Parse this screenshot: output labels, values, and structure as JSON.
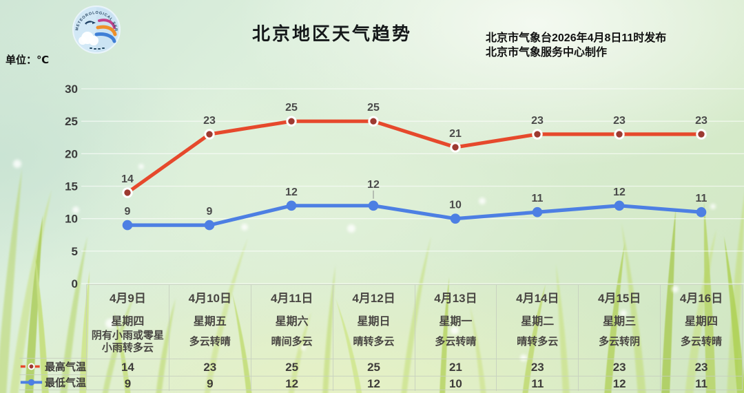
{
  "header": {
    "title": "北京地区天气趋势",
    "issued_by": "北京市气象台2026年4月8日11时发布",
    "produced_by": "北京市气象服务中心制作",
    "unit_label": "单位：℃",
    "logo_arc_text": "METEOROLOGICAL SERVICE"
  },
  "chart_data": {
    "type": "line",
    "title": "北京地区天气趋势",
    "unit": "℃",
    "categories": [
      "4月9日",
      "4月10日",
      "4月11日",
      "4月12日",
      "4月13日",
      "4月14日",
      "4月15日",
      "4月16日"
    ],
    "series": [
      {
        "name": "最高气温",
        "values": [
          14,
          23,
          25,
          25,
          21,
          23,
          23,
          23
        ],
        "line_color": "#e6492c",
        "line_style": "solid",
        "marker_fill": "#9d3a31",
        "marker_ring": "#ffffff"
      },
      {
        "name": "最低气温",
        "values": [
          9,
          9,
          12,
          12,
          10,
          11,
          12,
          11
        ],
        "line_color": "#4d7fe3",
        "line_style": "solid",
        "marker_fill": "#4d7fe3",
        "marker_ring": ""
      }
    ],
    "ylim": [
      0,
      30
    ],
    "yticks": [
      0,
      5,
      10,
      15,
      20,
      25,
      30
    ],
    "grid": true,
    "legend_position": "bottom-left",
    "value_label_color": "#4a4a4a",
    "tick_label_color": "#3b3b3b"
  },
  "table": {
    "row_labels": {
      "high": "最高气温",
      "low": "最低气温"
    },
    "days": [
      {
        "date": "4月9日",
        "weekday": "星期四",
        "weather": "阴有小雨或零星小雨转多云",
        "high": "14",
        "low": "9"
      },
      {
        "date": "4月10日",
        "weekday": "星期五",
        "weather": "多云转晴",
        "high": "23",
        "low": "9"
      },
      {
        "date": "4月11日",
        "weekday": "星期六",
        "weather": "晴间多云",
        "high": "25",
        "low": "12"
      },
      {
        "date": "4月12日",
        "weekday": "星期日",
        "weather": "晴转多云",
        "high": "25",
        "low": "12"
      },
      {
        "date": "4月13日",
        "weekday": "星期一",
        "weather": "多云转晴",
        "high": "21",
        "low": "10"
      },
      {
        "date": "4月14日",
        "weekday": "星期二",
        "weather": "晴转多云",
        "high": "23",
        "low": "11"
      },
      {
        "date": "4月15日",
        "weekday": "星期三",
        "weather": "多云转阴",
        "high": "23",
        "low": "12"
      },
      {
        "date": "4月16日",
        "weekday": "星期四",
        "weather": "多云转晴",
        "high": "23",
        "low": "11"
      }
    ]
  }
}
